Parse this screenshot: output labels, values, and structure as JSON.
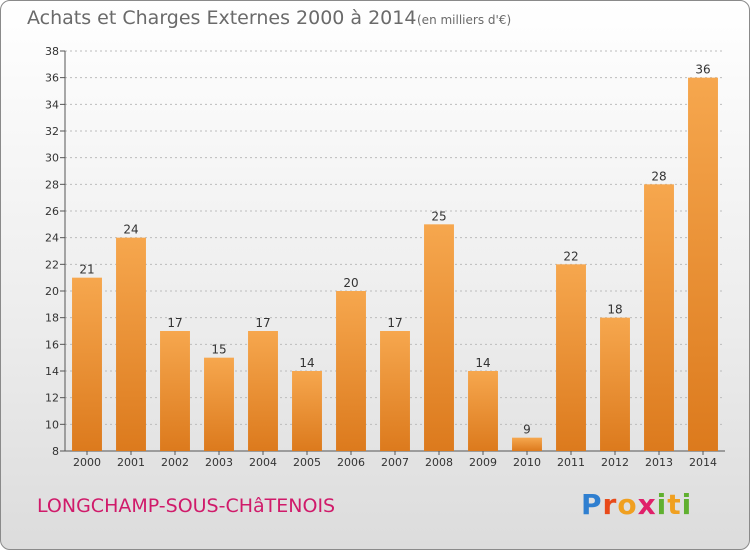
{
  "title": "Achats et Charges Externes 2000 à 2014",
  "unit": "(en milliers d'€)",
  "commune": "LONGCHAMP-SOUS-CHâTENOIS",
  "logo": {
    "letters": [
      "P",
      "r",
      "o",
      "x",
      "i",
      "t",
      "i"
    ],
    "colors": [
      "#2f7fd0",
      "#e84a1a",
      "#f0a020",
      "#e0206a",
      "#60b030",
      "#f0a020",
      "#60b030"
    ]
  },
  "colors": {
    "bar_light": "#f6a74e",
    "bar_dark": "#dc7a1d",
    "grid": "#bcbcbc"
  },
  "chart_data": {
    "type": "bar",
    "title": "Achats et Charges Externes 2000 à 2014",
    "categories": [
      "2000",
      "2001",
      "2002",
      "2003",
      "2004",
      "2005",
      "2006",
      "2007",
      "2008",
      "2009",
      "2010",
      "2011",
      "2012",
      "2013",
      "2014"
    ],
    "values": [
      21,
      24,
      17,
      15,
      17,
      14,
      20,
      17,
      25,
      14,
      9,
      22,
      18,
      28,
      36
    ],
    "ylim": [
      8,
      38
    ],
    "yticks": [
      8,
      10,
      12,
      14,
      16,
      18,
      20,
      22,
      24,
      26,
      28,
      30,
      32,
      34,
      36,
      38
    ],
    "grid": true,
    "data_labels": true
  }
}
